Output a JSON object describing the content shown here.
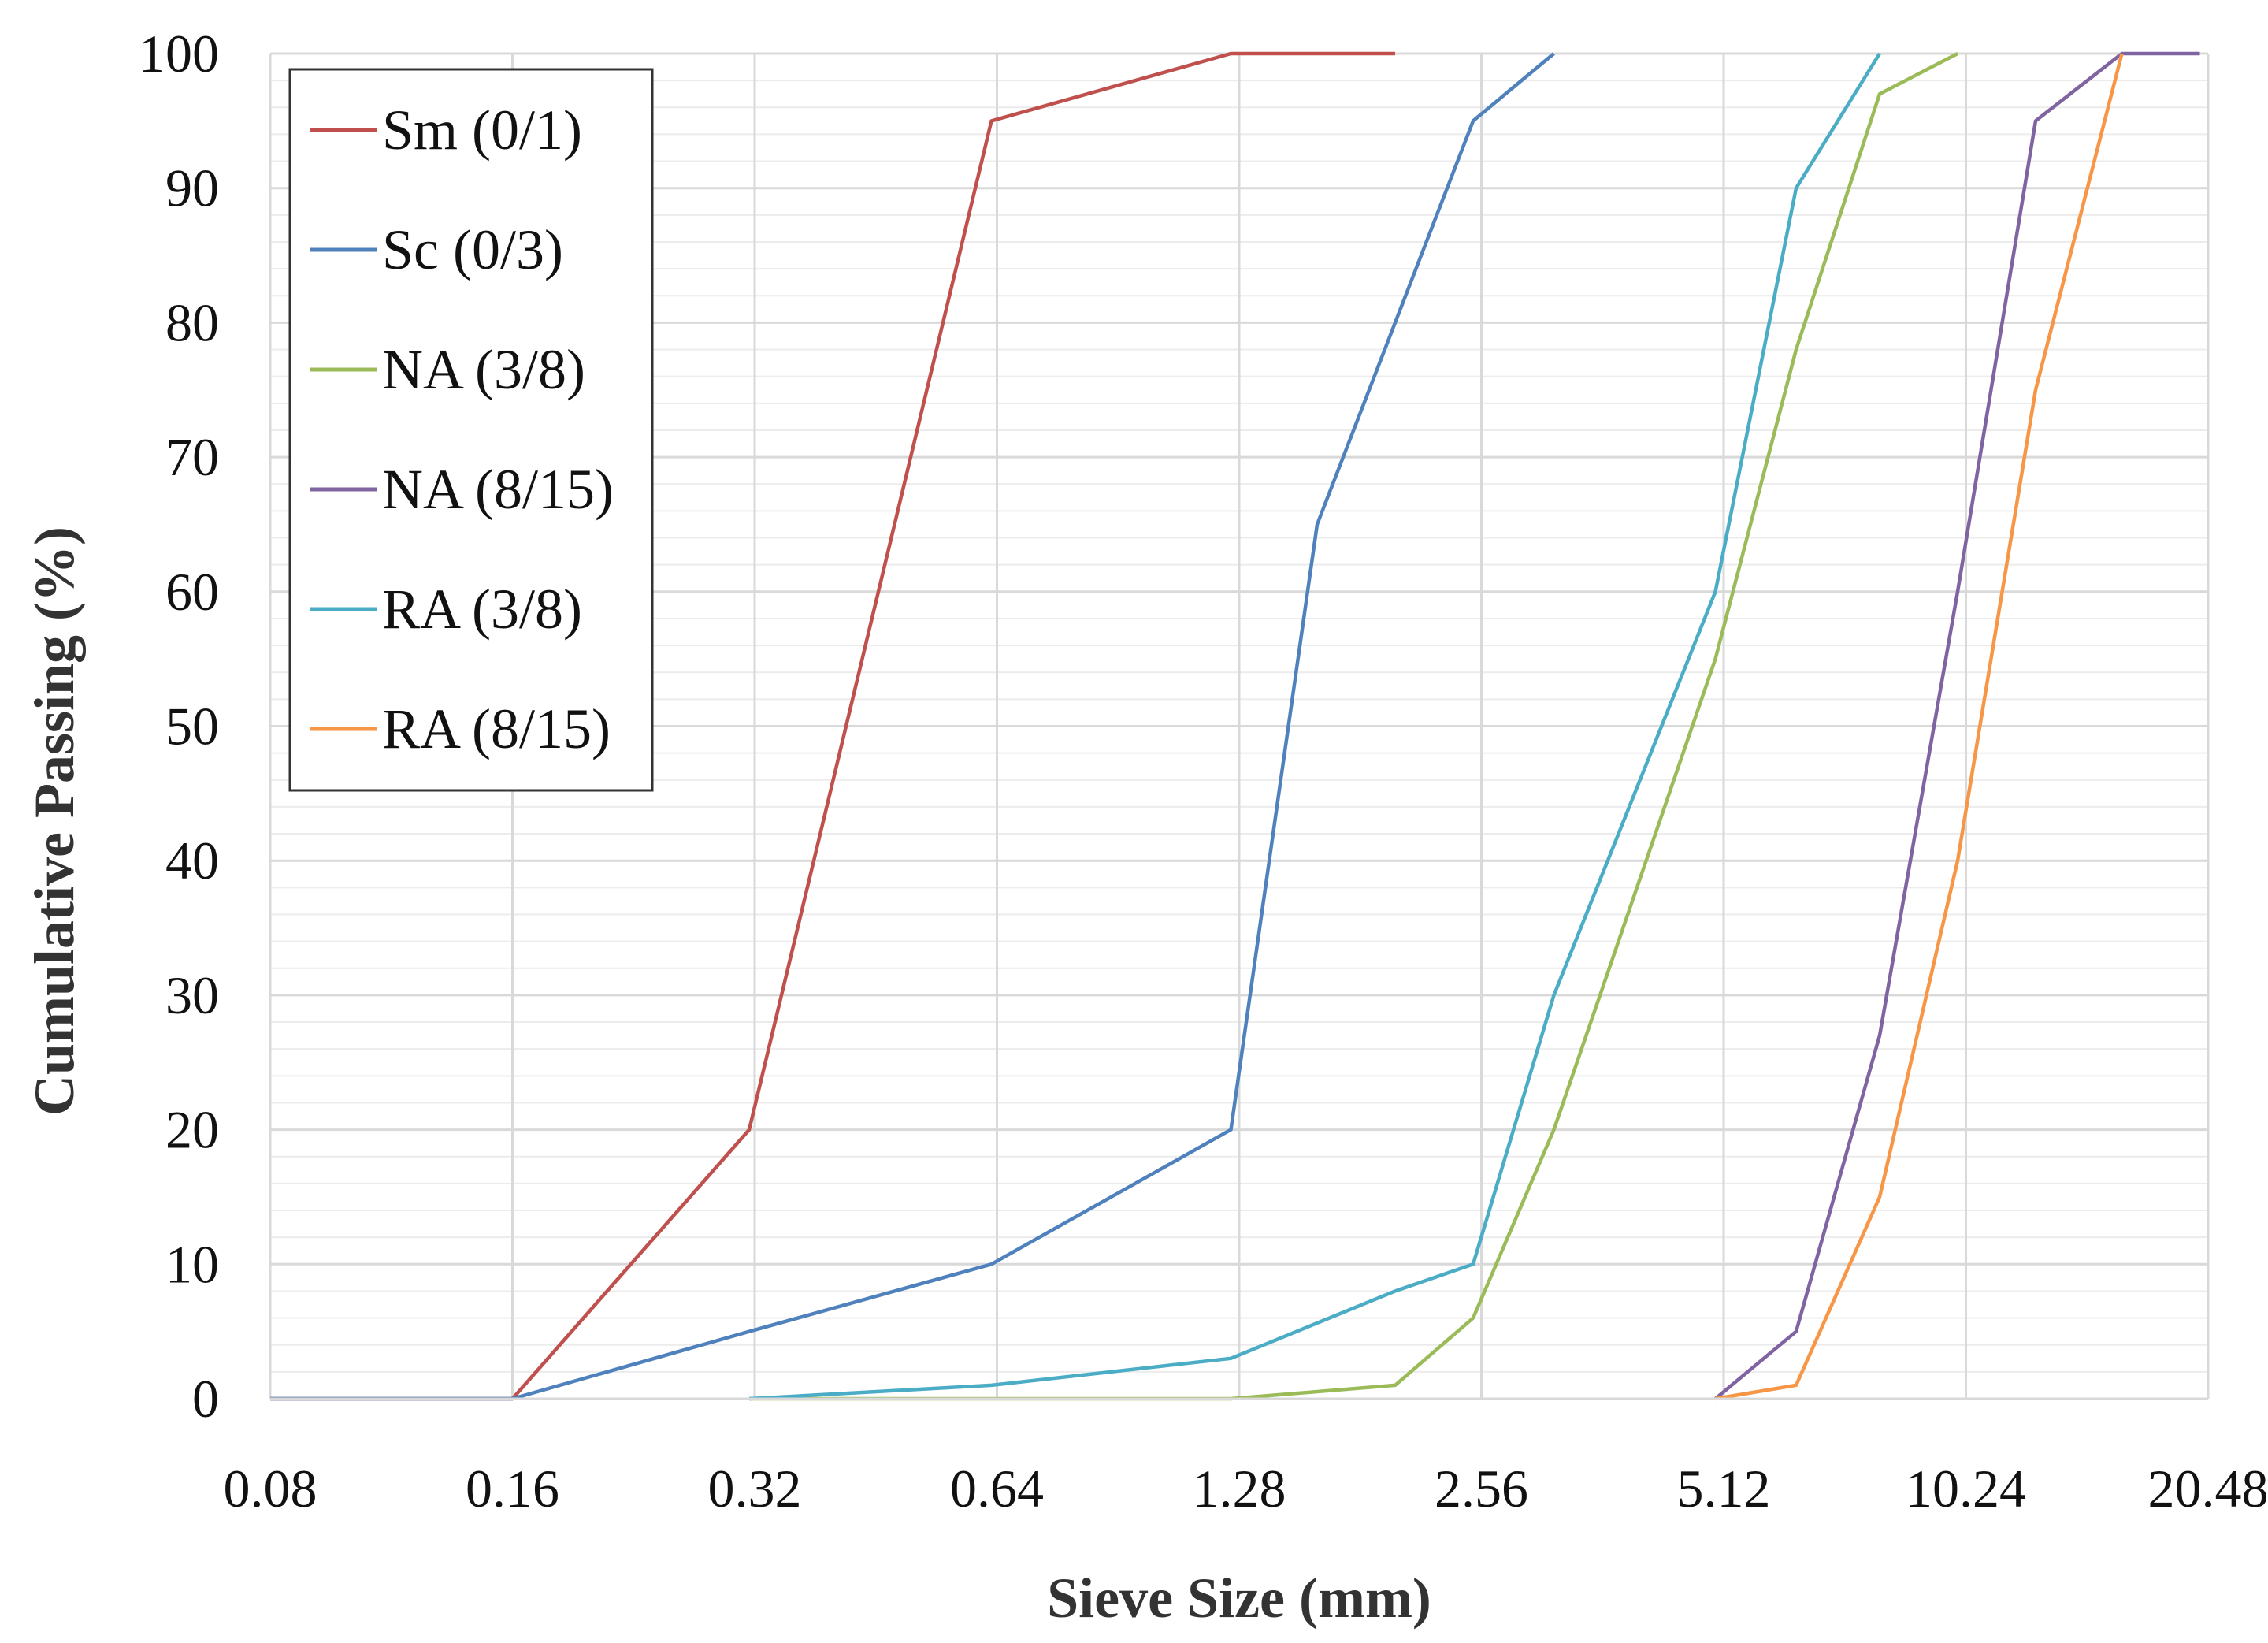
{
  "chart_data": {
    "type": "line",
    "title": "",
    "xlabel": "Sieve Size (mm)",
    "ylabel": "Cumulative Passing (%)",
    "x_scale": "log2",
    "x_ticks": [
      "0.08",
      "0.16",
      "0.32",
      "0.64",
      "1.28",
      "2.56",
      "5.12",
      "10.24",
      "20.48"
    ],
    "x_tick_values": [
      0.08,
      0.16,
      0.32,
      0.64,
      1.28,
      2.56,
      5.12,
      10.24,
      20.48
    ],
    "xlim": [
      0.08,
      20.48
    ],
    "y_ticks": [
      "0",
      "10",
      "20",
      "30",
      "40",
      "50",
      "60",
      "70",
      "80",
      "90",
      "100"
    ],
    "ylim": [
      0,
      100
    ],
    "grid": true,
    "legend_position": "top-left",
    "series": [
      {
        "name": "Sm (0/1)",
        "color": "#c0504d",
        "x": [
          0.08,
          0.16,
          0.315,
          0.63,
          1.25,
          2.0
        ],
        "y": [
          0,
          0,
          20,
          95,
          100,
          100
        ]
      },
      {
        "name": "Sc (0/3)",
        "color": "#4f81bd",
        "x": [
          0.08,
          0.16,
          0.315,
          0.63,
          1.25,
          1.6,
          2.5,
          3.15
        ],
        "y": [
          0,
          0,
          5,
          10,
          20,
          65,
          95,
          100
        ]
      },
      {
        "name": "NA (3/8)",
        "color": "#9bbb59",
        "x": [
          0.315,
          0.63,
          1.25,
          2.0,
          2.5,
          3.15,
          5.0,
          6.3,
          8.0,
          10.0
        ],
        "y": [
          0,
          0,
          0,
          1,
          6,
          20,
          55,
          78,
          97,
          100
        ]
      },
      {
        "name": "NA (8/15)",
        "color": "#8064a2",
        "x": [
          5.0,
          6.3,
          8.0,
          10.0,
          12.5,
          16.0,
          20.0
        ],
        "y": [
          0,
          5,
          27,
          60,
          95,
          100,
          100
        ]
      },
      {
        "name": "RA (3/8)",
        "color": "#4bacc6",
        "x": [
          0.315,
          0.63,
          1.25,
          2.0,
          2.5,
          3.15,
          5.0,
          6.3,
          8.0
        ],
        "y": [
          0,
          1,
          3,
          8,
          10,
          30,
          60,
          90,
          100
        ]
      },
      {
        "name": "RA (8/15)",
        "color": "#f79646",
        "x": [
          5.0,
          6.3,
          8.0,
          10.0,
          12.5,
          16.0
        ],
        "y": [
          0,
          1,
          15,
          40,
          75,
          100
        ]
      }
    ]
  }
}
